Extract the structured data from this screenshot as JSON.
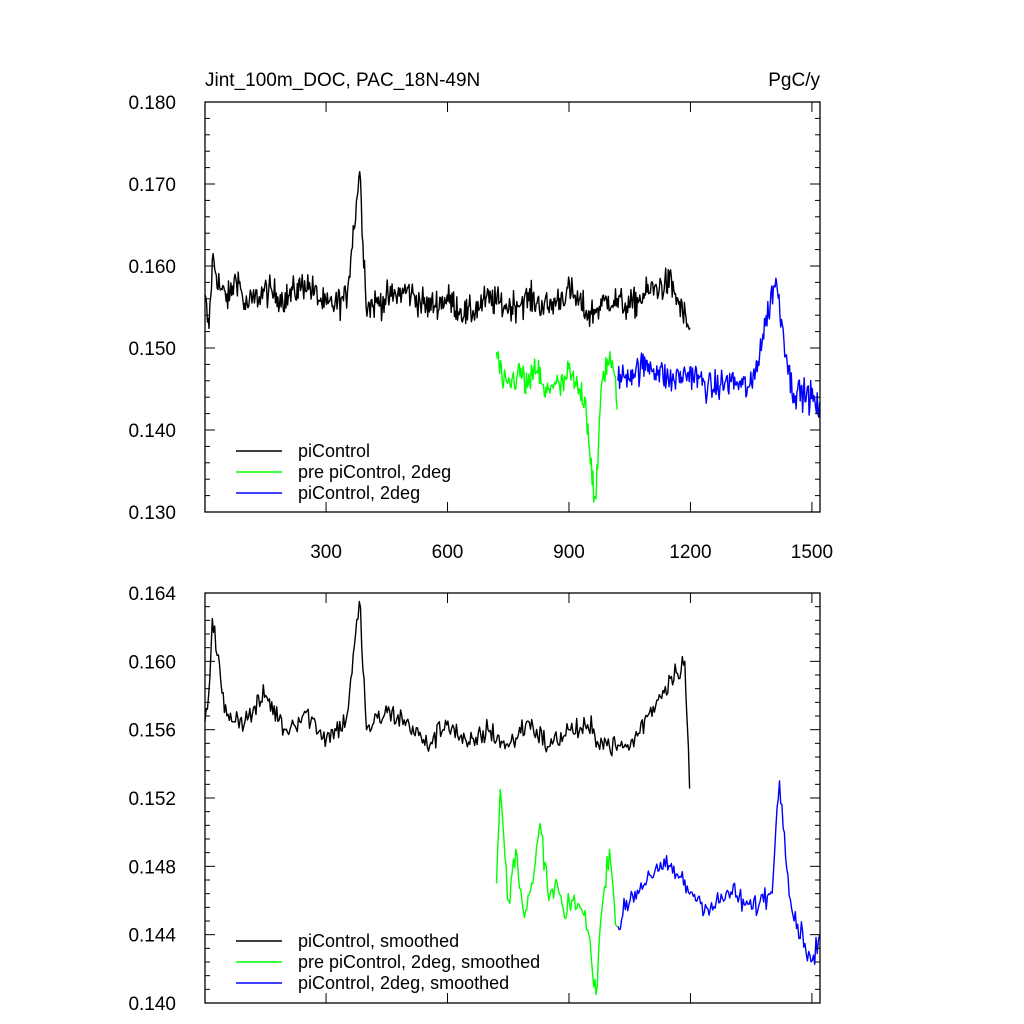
{
  "chart_data": [
    {
      "type": "line",
      "title": "Jint_100m_DOC, PAC_18N-49N",
      "units": "PgC/y",
      "xlim": [
        1,
        1520
      ],
      "ylim": [
        0.13,
        0.18
      ],
      "x_ticks": [
        300,
        600,
        900,
        1200,
        1500
      ],
      "x_tick_labels": [
        "300",
        "600",
        "900",
        "1200",
        "1500"
      ],
      "y_ticks": [
        0.13,
        0.14,
        0.15,
        0.16,
        0.17,
        0.18
      ],
      "y_tick_labels": [
        "0.130",
        "0.140",
        "0.150",
        "0.160",
        "0.170",
        "0.180"
      ],
      "legend_position": "bottom-left",
      "series": [
        {
          "name": "piControl",
          "color": "#000000",
          "x_range": [
            1,
            1200
          ],
          "x": [
            1,
            10,
            20,
            40,
            60,
            80,
            100,
            150,
            200,
            250,
            300,
            350,
            383,
            400,
            450,
            500,
            550,
            600,
            650,
            700,
            750,
            800,
            850,
            900,
            950,
            1000,
            1050,
            1100,
            1150,
            1200
          ],
          "values": [
            0.1565,
            0.152,
            0.161,
            0.157,
            0.156,
            0.159,
            0.155,
            0.157,
            0.156,
            0.158,
            0.155,
            0.156,
            0.1715,
            0.155,
            0.156,
            0.157,
            0.155,
            0.156,
            0.154,
            0.156,
            0.155,
            0.156,
            0.155,
            0.157,
            0.154,
            0.156,
            0.155,
            0.157,
            0.158,
            0.152
          ]
        },
        {
          "name": "pre piControl, 2deg",
          "color": "#00ff00",
          "x_range": [
            721,
            1020
          ],
          "x": [
            721,
            740,
            760,
            780,
            800,
            820,
            840,
            860,
            880,
            900,
            920,
            940,
            966,
            980,
            1000,
            1020
          ],
          "values": [
            0.1495,
            0.145,
            0.146,
            0.147,
            0.145,
            0.148,
            0.144,
            0.146,
            0.145,
            0.147,
            0.145,
            0.144,
            0.13,
            0.146,
            0.149,
            0.144
          ]
        },
        {
          "name": "piControl, 2deg",
          "color": "#0000ff",
          "x_range": [
            1021,
            1520
          ],
          "x": [
            1021,
            1050,
            1100,
            1150,
            1200,
            1250,
            1300,
            1350,
            1410,
            1450,
            1500,
            1520
          ],
          "values": [
            0.146,
            0.147,
            0.148,
            0.146,
            0.147,
            0.145,
            0.146,
            0.145,
            0.1585,
            0.145,
            0.144,
            0.142
          ]
        }
      ]
    },
    {
      "type": "line",
      "xlim": [
        1,
        1520
      ],
      "ylim": [
        0.14,
        0.164
      ],
      "x_ticks": [
        300,
        600,
        900,
        1200,
        1500
      ],
      "y_ticks": [
        0.14,
        0.144,
        0.148,
        0.152,
        0.156,
        0.16,
        0.164
      ],
      "y_tick_labels": [
        "0.140",
        "0.144",
        "0.148",
        "0.152",
        "0.156",
        "0.160",
        "0.164"
      ],
      "legend_position": "bottom-left",
      "series": [
        {
          "name": "piControl, smoothed",
          "color": "#000000",
          "x_range": [
            1,
            1200
          ],
          "x": [
            1,
            10,
            20,
            50,
            100,
            150,
            200,
            250,
            300,
            350,
            383,
            400,
            450,
            500,
            550,
            600,
            650,
            700,
            750,
            800,
            850,
            900,
            950,
            1000,
            1050,
            1100,
            1150,
            1185,
            1200
          ],
          "values": [
            0.1565,
            0.158,
            0.1625,
            0.157,
            0.1565,
            0.158,
            0.156,
            0.157,
            0.1555,
            0.1565,
            0.1635,
            0.156,
            0.157,
            0.1565,
            0.155,
            0.1565,
            0.155,
            0.156,
            0.155,
            0.1565,
            0.155,
            0.156,
            0.156,
            0.155,
            0.155,
            0.157,
            0.159,
            0.16,
            0.152
          ]
        },
        {
          "name": "pre piControl, 2deg, smoothed",
          "color": "#00ff00",
          "x_range": [
            721,
            1020
          ],
          "x": [
            721,
            730,
            750,
            770,
            790,
            810,
            830,
            850,
            870,
            890,
            910,
            930,
            950,
            966,
            980,
            1000,
            1020
          ],
          "values": [
            0.147,
            0.1525,
            0.146,
            0.149,
            0.145,
            0.147,
            0.1505,
            0.146,
            0.147,
            0.145,
            0.146,
            0.1455,
            0.144,
            0.1405,
            0.145,
            0.149,
            0.144
          ]
        },
        {
          "name": "piControl, 2deg, smoothed",
          "color": "#0000ff",
          "x_range": [
            1021,
            1520
          ],
          "x": [
            1021,
            1050,
            1100,
            1150,
            1200,
            1250,
            1300,
            1350,
            1400,
            1420,
            1450,
            1500,
            1520
          ],
          "values": [
            0.1445,
            0.146,
            0.1475,
            0.148,
            0.1465,
            0.1455,
            0.1465,
            0.1455,
            0.1465,
            0.153,
            0.1455,
            0.1425,
            0.144
          ]
        }
      ]
    }
  ]
}
